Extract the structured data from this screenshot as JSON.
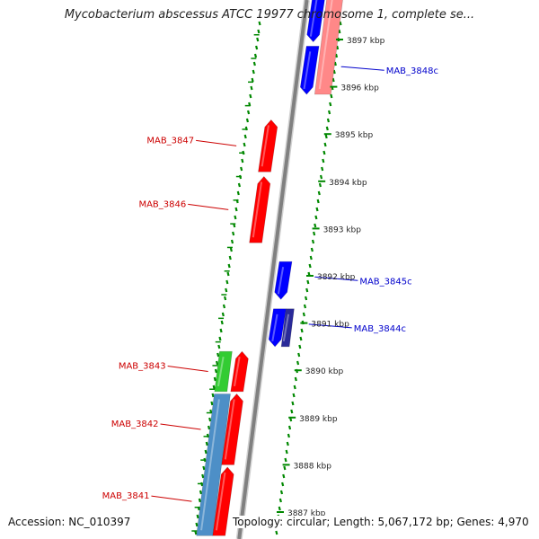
{
  "title": "Mycobacterium abscessus ATCC 19977 chromosome 1, complete se...",
  "footer": {
    "accession": "Accession: NC_010397",
    "topology": "Topology: circular; Length: 5,067,172 bp; Genes: 4,970"
  },
  "colors": {
    "forward_gene": "#ff0000",
    "reverse_gene": "#0000ff",
    "forward_rna": "#ff8888",
    "highlight_green": "#33cc33",
    "highlight_steel": "#4d8fc7",
    "backbone": "#808080",
    "tick_marks": "#008800",
    "label_forward": "#cc0000",
    "label_reverse": "#0000cc"
  },
  "kbp_ticks": [
    {
      "pos": 3887,
      "label": "3887 kbp"
    },
    {
      "pos": 3888,
      "label": "3888 kbp"
    },
    {
      "pos": 3889,
      "label": "3889 kbp"
    },
    {
      "pos": 3890,
      "label": "3890 kbp"
    },
    {
      "pos": 3891,
      "label": "3891 kbp"
    },
    {
      "pos": 3892,
      "label": "3892 kbp"
    },
    {
      "pos": 3893,
      "label": "3893 kbp"
    },
    {
      "pos": 3894,
      "label": "3894 kbp"
    },
    {
      "pos": 3895,
      "label": "3895 kbp"
    },
    {
      "pos": 3896,
      "label": "3896 kbp"
    },
    {
      "pos": 3897,
      "label": "3897 kbp"
    }
  ],
  "genes": [
    {
      "name": "MAB_3848c",
      "labeled": true,
      "strand": "-",
      "start": 3895.84,
      "end": 3896.86
    },
    {
      "name": "",
      "labeled": false,
      "strand": "-",
      "start": 3896.95,
      "end": 3898.0
    },
    {
      "name": "",
      "labeled": false,
      "strand": "-rna",
      "start": 3895.84,
      "end": 3898.0
    },
    {
      "name": "MAB_3847",
      "labeled": true,
      "strand": "+",
      "start": 3894.2,
      "end": 3895.3
    },
    {
      "name": "MAB_3846",
      "labeled": true,
      "strand": "+",
      "start": 3892.7,
      "end": 3894.1
    },
    {
      "name": "MAB_3845c",
      "labeled": true,
      "strand": "-",
      "start": 3891.5,
      "end": 3892.3
    },
    {
      "name": "MAB_3844c",
      "labeled": true,
      "strand": "-",
      "start": 3890.5,
      "end": 3891.3
    },
    {
      "name": "",
      "labeled": false,
      "strand": "-dark",
      "start": 3890.5,
      "end": 3891.3
    },
    {
      "name": "MAB_3843",
      "labeled": true,
      "strand": "+",
      "start": 3889.55,
      "end": 3890.4
    },
    {
      "name": "MAB_3842",
      "labeled": true,
      "strand": "+",
      "start": 3888.0,
      "end": 3889.5
    },
    {
      "name": "MAB_3841",
      "labeled": true,
      "strand": "+",
      "start": 3886.5,
      "end": 3887.95
    },
    {
      "name": "",
      "labeled": false,
      "strand": "+green",
      "start": 3889.55,
      "end": 3890.4
    },
    {
      "name": "",
      "labeled": false,
      "strand": "+steel",
      "start": 3886.5,
      "end": 3889.5
    }
  ]
}
